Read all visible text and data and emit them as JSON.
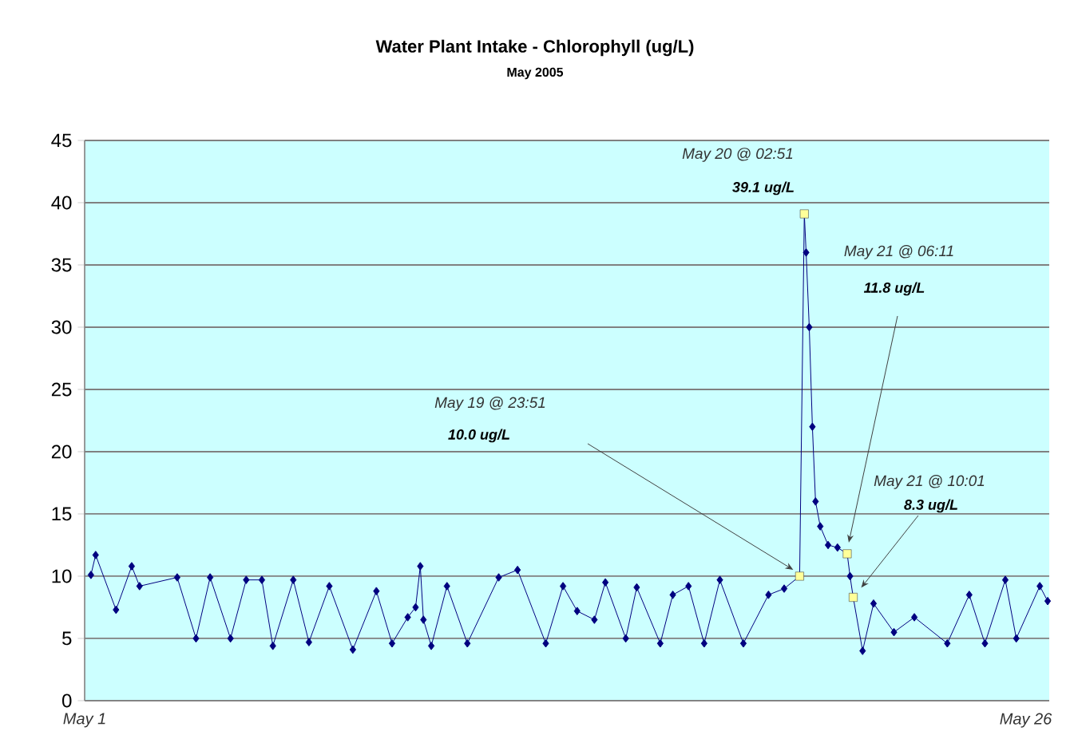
{
  "chart_data": {
    "type": "line",
    "title": "Water Plant Intake - Chlorophyll (ug/L)",
    "subtitle": "May 2005",
    "xlim": [
      "2005-05-01T00:00",
      "2005-05-26T15:00"
    ],
    "xticks": [
      {
        "value": "2005-05-01",
        "label": "May 1"
      },
      {
        "value": "2005-05-26",
        "label": "May 26"
      }
    ],
    "ylim": [
      0,
      45
    ],
    "yticks": [
      0,
      5,
      10,
      15,
      20,
      25,
      30,
      35,
      40,
      45
    ],
    "grid": "y",
    "marker": "diamond",
    "line_style": "solid",
    "series": [
      {
        "color": "#000080",
        "x": [
          "2005-05-01T04:00",
          "2005-05-01T07:00",
          "2005-05-01T20:00",
          "2005-05-02T06:00",
          "2005-05-02T11:00",
          "2005-05-03T11:00",
          "2005-05-03T23:00",
          "2005-05-04T08:00",
          "2005-05-04T21:00",
          "2005-05-05T07:00",
          "2005-05-05T17:00",
          "2005-05-06T00:00",
          "2005-05-06T13:00",
          "2005-05-06T23:00",
          "2005-05-07T12:00",
          "2005-05-08T03:00",
          "2005-05-08T18:00",
          "2005-05-09T04:00",
          "2005-05-09T14:00",
          "2005-05-09T19:00",
          "2005-05-09T22:00",
          "2005-05-10T00:00",
          "2005-05-10T05:00",
          "2005-05-10T15:00",
          "2005-05-11T04:00",
          "2005-05-12T00:00",
          "2005-05-12T12:00",
          "2005-05-13T06:00",
          "2005-05-13T17:00",
          "2005-05-14T02:00",
          "2005-05-14T13:00",
          "2005-05-14T20:00",
          "2005-05-15T09:00",
          "2005-05-15T16:00",
          "2005-05-16T07:00",
          "2005-05-16T15:00",
          "2005-05-17T01:00",
          "2005-05-17T11:00",
          "2005-05-17T21:00",
          "2005-05-18T12:00",
          "2005-05-19T04:00",
          "2005-05-19T14:00",
          "2005-05-19T23:51",
          "2005-05-20T02:51",
          "2005-05-20T04:00",
          "2005-05-20T06:00",
          "2005-05-20T08:00",
          "2005-05-20T10:00",
          "2005-05-20T13:00",
          "2005-05-20T18:00",
          "2005-05-21T00:00",
          "2005-05-21T06:11",
          "2005-05-21T08:00",
          "2005-05-21T10:01",
          "2005-05-21T16:00",
          "2005-05-21T23:00",
          "2005-05-22T12:00",
          "2005-05-23T01:00",
          "2005-05-23T22:00",
          "2005-05-24T12:00",
          "2005-05-24T22:00",
          "2005-05-25T11:00",
          "2005-05-25T18:00",
          "2005-05-26T09:00",
          "2005-05-26T14:00"
        ],
        "values": [
          10.1,
          11.7,
          7.3,
          10.8,
          9.2,
          9.9,
          5.0,
          9.9,
          5.0,
          9.7,
          9.7,
          4.4,
          9.7,
          4.7,
          9.2,
          4.1,
          8.8,
          4.6,
          6.7,
          7.5,
          10.8,
          6.5,
          4.4,
          9.2,
          4.6,
          9.9,
          10.5,
          4.6,
          9.2,
          7.2,
          6.5,
          9.5,
          5.0,
          9.1,
          4.6,
          8.5,
          9.2,
          4.6,
          9.7,
          4.6,
          8.5,
          9.0,
          10.0,
          39.1,
          36,
          30,
          22,
          16,
          14,
          12.5,
          12.3,
          11.8,
          10,
          8.3,
          4.0,
          7.8,
          5.5,
          6.7,
          4.6,
          8.5,
          4.6,
          9.7,
          5.0,
          9.2,
          8.0
        ]
      },
      {
        "type": "scatter",
        "marker": "square",
        "color": "#ffff99",
        "x": [
          "2005-05-19T23:51",
          "2005-05-20T02:51",
          "2005-05-21T06:11",
          "2005-05-21T10:01"
        ],
        "values": [
          10.0,
          39.1,
          11.8,
          8.3
        ]
      }
    ],
    "annotations": [
      "May 20 @ 02:51",
      "39.1 ug/L",
      "May 19 @ 23:51",
      "10.0 ug/L",
      "May 21 @ 06:11",
      "11.8 ug/L",
      "May 21 @ 10:01",
      "8.3 ug/L"
    ]
  }
}
